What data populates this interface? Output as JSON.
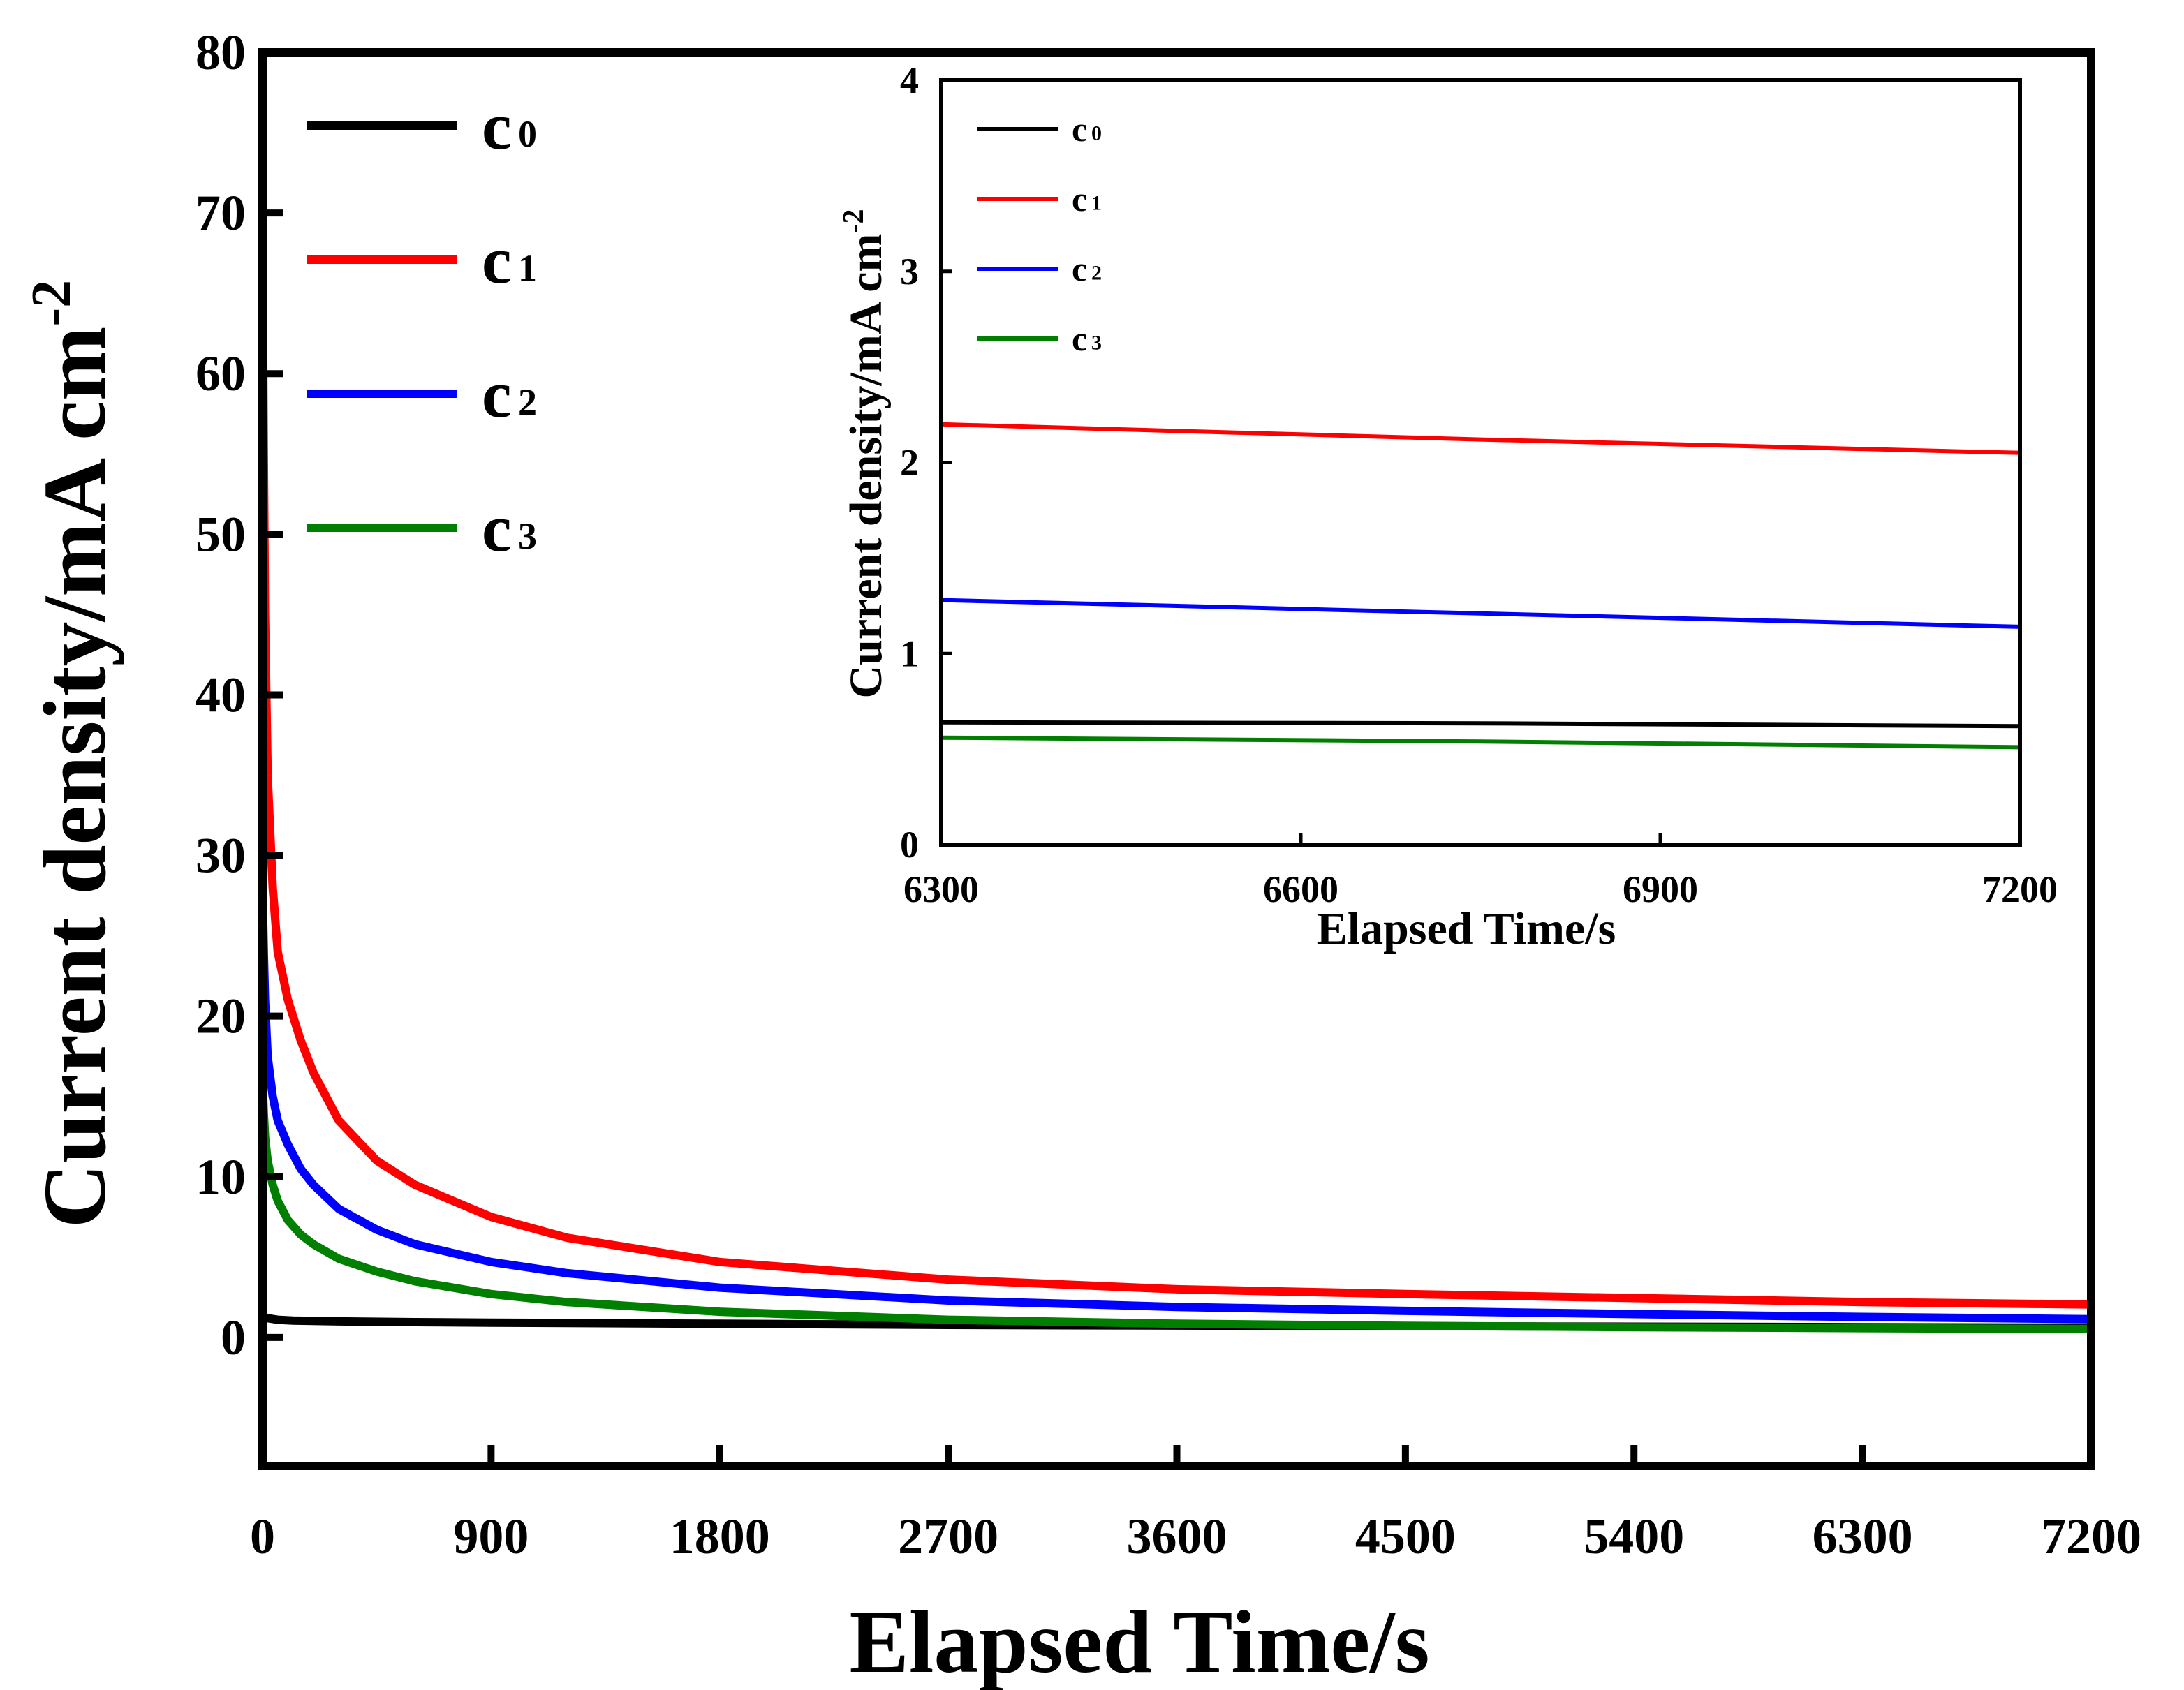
{
  "colors": {
    "c0": "#000000",
    "c1": "#ff0000",
    "c2": "#0000ff",
    "c3": "#007f00"
  },
  "chart_data": [
    {
      "id": "main",
      "type": "line",
      "xlabel": "Elapsed Time/s",
      "ylabel": "Current density/mA cm",
      "ylabel_superscript": "-2",
      "xlim": [
        0,
        7200
      ],
      "ylim": [
        -8,
        80
      ],
      "xticks": [
        0,
        900,
        1800,
        2700,
        3600,
        4500,
        5400,
        6300,
        7200
      ],
      "yticks": [
        0,
        10,
        20,
        30,
        40,
        50,
        60,
        70,
        80
      ],
      "legend_position": "top-left",
      "series": [
        {
          "name": "c0",
          "label_main": "c",
          "label_sub": "0",
          "color_key": "c0",
          "x": [
            0,
            5,
            20,
            60,
            120,
            300,
            600,
            900,
            1800,
            2700,
            3600,
            4500,
            5400,
            6300,
            7200
          ],
          "y": [
            1.6,
            1.3,
            1.2,
            1.1,
            1.05,
            1.0,
            0.95,
            0.92,
            0.85,
            0.78,
            0.74,
            0.7,
            0.67,
            0.64,
            0.61
          ]
        },
        {
          "name": "c1",
          "label_main": "c",
          "label_sub": "1",
          "color_key": "c1",
          "x": [
            0,
            5,
            10,
            20,
            40,
            60,
            100,
            150,
            200,
            300,
            450,
            600,
            900,
            1200,
            1800,
            2700,
            3600,
            4500,
            5400,
            6300,
            7200
          ],
          "y": [
            68,
            55,
            45,
            35,
            28,
            24,
            21,
            18.5,
            16.5,
            13.5,
            11,
            9.5,
            7.5,
            6.2,
            4.7,
            3.6,
            3.0,
            2.7,
            2.45,
            2.2,
            2.05
          ]
        },
        {
          "name": "c2",
          "label_main": "c",
          "label_sub": "2",
          "color_key": "c2",
          "x": [
            0,
            5,
            10,
            20,
            40,
            60,
            100,
            150,
            200,
            300,
            450,
            600,
            900,
            1200,
            1800,
            2700,
            3600,
            4500,
            5400,
            6300,
            7200
          ],
          "y": [
            28,
            24,
            21,
            17.5,
            15,
            13.5,
            12,
            10.5,
            9.5,
            8.0,
            6.7,
            5.8,
            4.7,
            4.0,
            3.1,
            2.3,
            1.9,
            1.65,
            1.45,
            1.28,
            1.14
          ]
        },
        {
          "name": "c3",
          "label_main": "c",
          "label_sub": "3",
          "color_key": "c3",
          "x": [
            0,
            5,
            10,
            20,
            40,
            60,
            100,
            150,
            200,
            300,
            450,
            600,
            900,
            1200,
            1800,
            2700,
            3600,
            4500,
            5400,
            6300,
            7200
          ],
          "y": [
            16,
            14,
            12.5,
            11,
            9.5,
            8.5,
            7.3,
            6.4,
            5.8,
            4.9,
            4.1,
            3.5,
            2.7,
            2.2,
            1.6,
            1.1,
            0.85,
            0.72,
            0.64,
            0.58,
            0.52
          ]
        }
      ]
    },
    {
      "id": "inset",
      "type": "line",
      "xlabel": "Elapsed Time/s",
      "ylabel": "Current density/mA cm",
      "ylabel_superscript": "-2",
      "xlim": [
        6300,
        7200
      ],
      "ylim": [
        0,
        4
      ],
      "xticks": [
        6300,
        6600,
        6900,
        7200
      ],
      "yticks": [
        0,
        1,
        2,
        3,
        4
      ],
      "legend_position": "top-left",
      "series": [
        {
          "name": "c0",
          "label_main": "c",
          "label_sub": "0",
          "color_key": "c0",
          "x": [
            6300,
            6750,
            7200
          ],
          "y": [
            0.64,
            0.635,
            0.62
          ]
        },
        {
          "name": "c1",
          "label_main": "c",
          "label_sub": "1",
          "color_key": "c1",
          "x": [
            6300,
            6750,
            7200
          ],
          "y": [
            2.2,
            2.12,
            2.05
          ]
        },
        {
          "name": "c2",
          "label_main": "c",
          "label_sub": "2",
          "color_key": "c2",
          "x": [
            6300,
            6750,
            7200
          ],
          "y": [
            1.28,
            1.21,
            1.14
          ]
        },
        {
          "name": "c3",
          "label_main": "c",
          "label_sub": "3",
          "color_key": "c3",
          "x": [
            6300,
            6750,
            7200
          ],
          "y": [
            0.56,
            0.54,
            0.51
          ]
        }
      ]
    }
  ]
}
